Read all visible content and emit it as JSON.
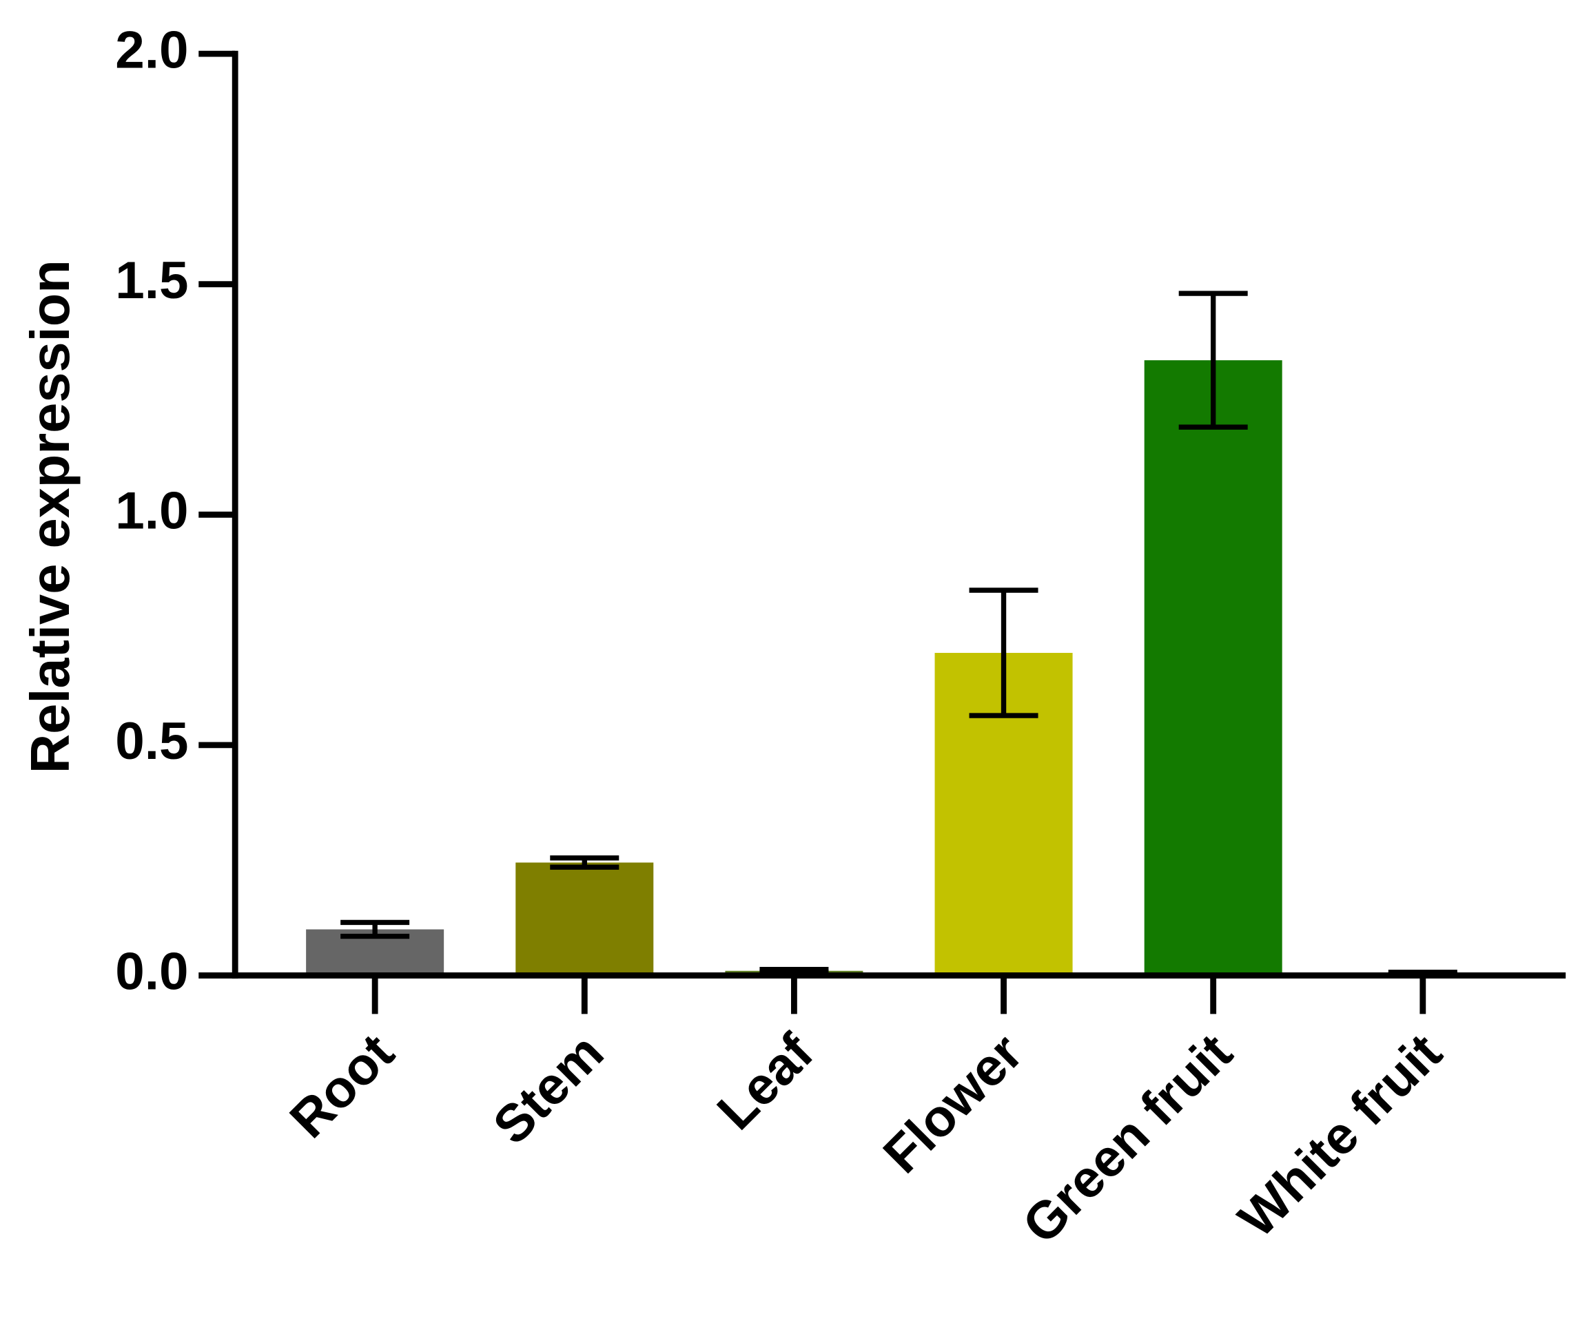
{
  "chart_data": {
    "type": "bar",
    "y_label": "Relative expression",
    "categories": [
      "Root",
      "Stem",
      "Leaf",
      "Flower",
      "Green fruit",
      "White fruit"
    ],
    "values": [
      0.1,
      0.245,
      0.01,
      0.7,
      1.335,
      0.005
    ],
    "errors": [
      0.015,
      0.01,
      0.003,
      0.136,
      0.145,
      0.002
    ],
    "colors": [
      "#666666",
      "#7f7f00",
      "#5a7a1e",
      "#c2c200",
      "#137a00",
      "#d0d0d0"
    ],
    "ylim": [
      0,
      2
    ],
    "yticks": [
      {
        "value": 0,
        "label": "0.0"
      },
      0.5,
      {
        "value": 1,
        "label": "1.0"
      },
      1.5,
      {
        "value": 2,
        "label": "2.0"
      }
    ],
    "grid": false
  }
}
